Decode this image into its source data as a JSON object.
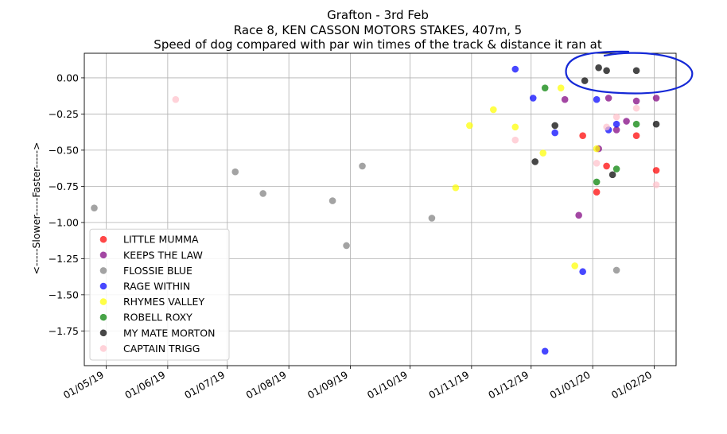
{
  "chart_data": {
    "type": "scatter",
    "title_lines": [
      "Grafton  - 3rd Feb",
      "Race 8, KEN CASSON MOTORS STAKES, 407m, 5",
      "Speed of dog compared with par win times of the track & distance it ran at"
    ],
    "ylabel": "<-----Slower-----Faster----->",
    "xlabel": "",
    "x_ticks": [
      "01/05/19",
      "01/06/19",
      "01/07/19",
      "01/08/19",
      "01/09/19",
      "01/10/19",
      "01/11/19",
      "01/12/19",
      "01/01/20",
      "01/02/20"
    ],
    "y_ticks": [
      0.0,
      -0.25,
      -0.5,
      -0.75,
      -1.0,
      -1.25,
      -1.5,
      -1.75
    ],
    "y_tick_labels": [
      "0.00",
      "−0.25",
      "−0.50",
      "−0.75",
      "−1.00",
      "−1.25",
      "−1.50",
      "−1.75"
    ],
    "xlim": [
      "2019-04-20",
      "2020-02-12"
    ],
    "ylim": [
      -1.99,
      0.17
    ],
    "grid": true,
    "legend_position": "lower-left",
    "annotation": "hand-drawn blue circle around the top-right My Mate Morton points",
    "series": [
      {
        "name": "LITTLE MUMMA",
        "color": "#ff0000",
        "points": [
          [
            "2019-12-27",
            -0.4
          ],
          [
            "2020-01-08",
            -0.61
          ],
          [
            "2020-01-03",
            -0.79
          ],
          [
            "2020-01-23",
            -0.4
          ],
          [
            "2020-02-02",
            -0.64
          ]
        ]
      },
      {
        "name": "KEEPS THE LAW",
        "color": "#800080",
        "points": [
          [
            "2019-12-18",
            -0.15
          ],
          [
            "2019-12-25",
            -0.95
          ],
          [
            "2020-01-04",
            -0.49
          ],
          [
            "2020-01-09",
            -0.14
          ],
          [
            "2020-01-13",
            -0.36
          ],
          [
            "2020-01-18",
            -0.3
          ],
          [
            "2020-01-23",
            -0.16
          ],
          [
            "2020-02-02",
            -0.14
          ]
        ]
      },
      {
        "name": "FLOSSIE BLUE",
        "color": "#808080",
        "points": [
          [
            "2019-04-25",
            -0.9
          ],
          [
            "2019-07-05",
            -0.65
          ],
          [
            "2019-07-19",
            -0.8
          ],
          [
            "2019-08-23",
            -0.85
          ],
          [
            "2019-08-30",
            -1.16
          ],
          [
            "2019-09-07",
            -0.61
          ],
          [
            "2019-10-12",
            -0.97
          ],
          [
            "2020-01-13",
            -1.33
          ]
        ]
      },
      {
        "name": "RAGE WITHIN",
        "color": "#0000ff",
        "points": [
          [
            "2019-11-23",
            0.06
          ],
          [
            "2019-12-02",
            -0.14
          ],
          [
            "2019-12-08",
            -1.89
          ],
          [
            "2019-12-13",
            -0.38
          ],
          [
            "2019-12-27",
            -1.34
          ],
          [
            "2020-01-03",
            -0.15
          ],
          [
            "2020-01-09",
            -0.36
          ],
          [
            "2020-01-13",
            -0.32
          ]
        ]
      },
      {
        "name": "RHYMES VALLEY",
        "color": "#ffff00",
        "points": [
          [
            "2019-10-24",
            -0.76
          ],
          [
            "2019-10-31",
            -0.33
          ],
          [
            "2019-11-12",
            -0.22
          ],
          [
            "2019-11-23",
            -0.34
          ],
          [
            "2019-12-07",
            -0.52
          ],
          [
            "2019-12-16",
            -0.07
          ],
          [
            "2019-12-23",
            -1.3
          ],
          [
            "2020-01-03",
            -0.49
          ]
        ]
      },
      {
        "name": "ROBELL ROXY",
        "color": "#008000",
        "points": [
          [
            "2019-12-08",
            -0.07
          ],
          [
            "2020-01-03",
            -0.72
          ],
          [
            "2020-01-13",
            -0.63
          ],
          [
            "2020-01-23",
            -0.32
          ]
        ]
      },
      {
        "name": "MY MATE MORTON",
        "color": "#000000",
        "points": [
          [
            "2019-12-03",
            -0.58
          ],
          [
            "2019-12-13",
            -0.33
          ],
          [
            "2019-12-28",
            -0.02
          ],
          [
            "2020-01-04",
            0.07
          ],
          [
            "2020-01-08",
            0.05
          ],
          [
            "2020-01-11",
            -0.67
          ],
          [
            "2020-01-23",
            0.05
          ],
          [
            "2020-02-02",
            -0.32
          ]
        ]
      },
      {
        "name": "CAPTAIN TRIGG",
        "color": "#ffc0cb",
        "points": [
          [
            "2019-06-05",
            -0.15
          ],
          [
            "2019-11-23",
            -0.43
          ],
          [
            "2020-01-03",
            -0.59
          ],
          [
            "2020-01-08",
            -0.34
          ],
          [
            "2020-01-13",
            -0.27
          ],
          [
            "2020-01-23",
            -0.21
          ],
          [
            "2020-02-02",
            -0.74
          ]
        ]
      }
    ]
  }
}
